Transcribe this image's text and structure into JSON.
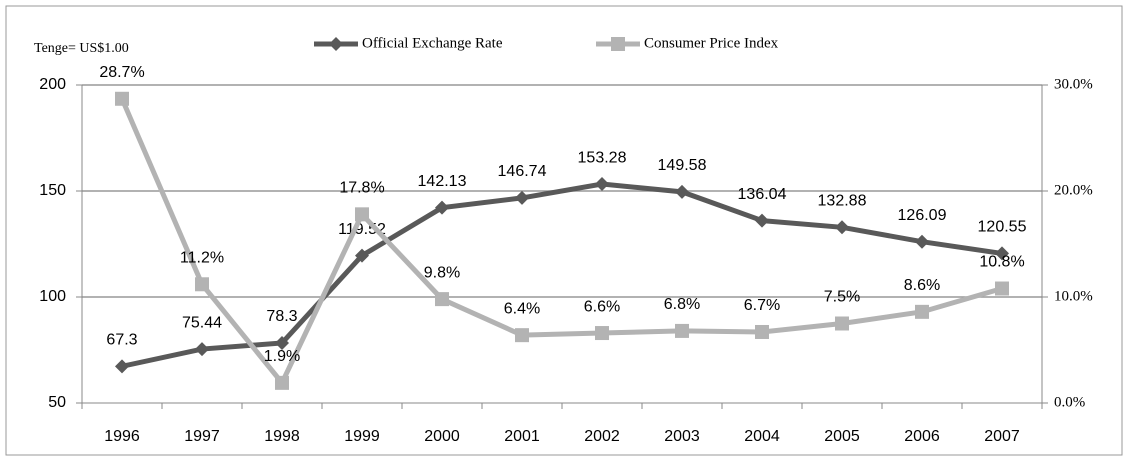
{
  "chart_data": {
    "type": "line",
    "y_label": "Tenge= US$1.00",
    "categories": [
      "1996",
      "1997",
      "1998",
      "1999",
      "2000",
      "2001",
      "2002",
      "2003",
      "2004",
      "2005",
      "2006",
      "2007"
    ],
    "series": [
      {
        "name": "Official Exchange Rate",
        "color": "#595959",
        "marker": "diamond",
        "values": [
          67.3,
          75.44,
          78.3,
          119.52,
          142.13,
          146.74,
          153.28,
          149.58,
          136.04,
          132.88,
          126.09,
          120.55
        ]
      },
      {
        "name": "Consumer Price Index",
        "color": "#b3b3b3",
        "marker": "square",
        "axis": "y2",
        "values": [
          28.7,
          11.2,
          1.9,
          17.8,
          9.8,
          6.4,
          6.6,
          6.8,
          6.7,
          7.5,
          8.6,
          10.8
        ],
        "value_labels": [
          "28.7%",
          "11.2%",
          "1.9%",
          "17.8%",
          "9.8%",
          "6.4%",
          "6.6%",
          "6.8%",
          "6.7%",
          "7.5%",
          "8.6%",
          "10.8%"
        ]
      }
    ],
    "ylim": [
      50,
      200
    ],
    "yticks": [
      50,
      100,
      150,
      200
    ],
    "y2lim": [
      0,
      30
    ],
    "y2ticks": [
      {
        "value": 0,
        "label": "0.0%"
      },
      {
        "value": 10,
        "label": "10.0%"
      },
      {
        "value": 20,
        "label": "20.0%"
      },
      {
        "value": 30,
        "label": "30.0%"
      }
    ],
    "grid": true,
    "legend": "top"
  }
}
